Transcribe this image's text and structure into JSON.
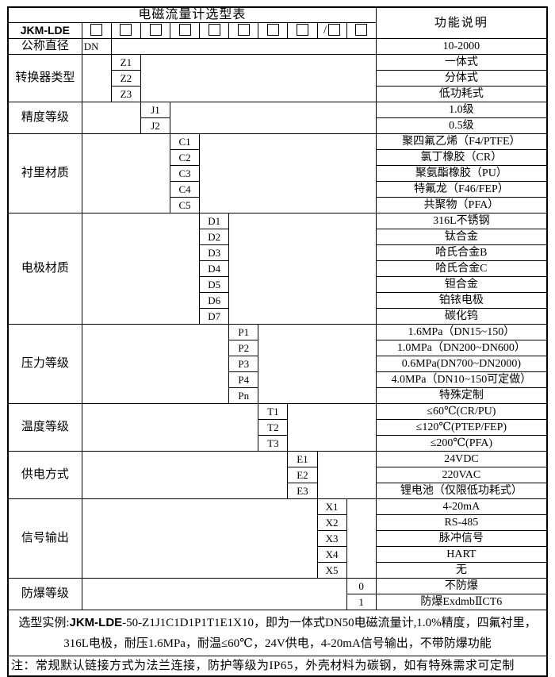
{
  "colors": {
    "border": "#000000",
    "background": "#ffffff",
    "text": "#000000"
  },
  "header": {
    "title": "电磁流量计选型表",
    "function_column": "功能说明",
    "model_prefix": "JKM-LDE",
    "slot_slash": "/"
  },
  "groups": [
    {
      "label": "公称直径",
      "codes": [
        {
          "code": "DN",
          "desc": "10-2000"
        }
      ]
    },
    {
      "label": "转换器类型",
      "codes": [
        {
          "code": "Z1",
          "desc": "一体式"
        },
        {
          "code": "Z2",
          "desc": "分体式"
        },
        {
          "code": "Z3",
          "desc": "低功耗式"
        }
      ]
    },
    {
      "label": "精度等级",
      "codes": [
        {
          "code": "J1",
          "desc": "1.0级"
        },
        {
          "code": "J2",
          "desc": "0.5级"
        }
      ]
    },
    {
      "label": "衬里材质",
      "codes": [
        {
          "code": "C1",
          "desc": "聚四氟乙烯（F4/PTFE）"
        },
        {
          "code": "C2",
          "desc": "氯丁橡胶（CR）"
        },
        {
          "code": "C3",
          "desc": "聚氨酯橡胶（PU）"
        },
        {
          "code": "C4",
          "desc": "特氟龙（F46/FEP）"
        },
        {
          "code": "C5",
          "desc": "共聚物（PFA）"
        }
      ]
    },
    {
      "label": "电极材质",
      "codes": [
        {
          "code": "D1",
          "desc": "316L不锈钢"
        },
        {
          "code": "D2",
          "desc": "钛合金"
        },
        {
          "code": "D3",
          "desc": "哈氏合金B"
        },
        {
          "code": "D4",
          "desc": "哈氏合金C"
        },
        {
          "code": "D5",
          "desc": "钽合金"
        },
        {
          "code": "D6",
          "desc": "铂铱电极"
        },
        {
          "code": "D7",
          "desc": "碳化钨"
        }
      ]
    },
    {
      "label": "压力等级",
      "codes": [
        {
          "code": "P1",
          "desc": "1.6MPa（DN15~150）"
        },
        {
          "code": "P2",
          "desc": "1.0MPa（DN200~DN600）"
        },
        {
          "code": "P3",
          "desc": "0.6MPa(DN700~DN2000)"
        },
        {
          "code": "P4",
          "desc": "4.0MPa（DN10~150可定做）"
        },
        {
          "code": "Pn",
          "desc": "特殊定制"
        }
      ]
    },
    {
      "label": "温度等级",
      "codes": [
        {
          "code": "T1",
          "desc": "≤60℃(CR/PU)"
        },
        {
          "code": "T2",
          "desc": "≤120℃(PTEP/FEP)"
        },
        {
          "code": "T3",
          "desc": "≤200℃(PFA)"
        }
      ]
    },
    {
      "label": "供电方式",
      "codes": [
        {
          "code": "E1",
          "desc": "24VDC"
        },
        {
          "code": "E2",
          "desc": "220VAC"
        },
        {
          "code": "E3",
          "desc": "锂电池（仅限低功耗式）"
        }
      ]
    },
    {
      "label": "信号输出",
      "codes": [
        {
          "code": "X1",
          "desc": "4-20mA"
        },
        {
          "code": "X2",
          "desc": "RS-485"
        },
        {
          "code": "X3",
          "desc": "脉冲信号"
        },
        {
          "code": "X4",
          "desc": "HART"
        },
        {
          "code": "X5",
          "desc": "无"
        }
      ]
    },
    {
      "label": "防爆等级",
      "codes": [
        {
          "code": "0",
          "desc": "不防爆"
        },
        {
          "code": "1",
          "desc": "防爆ExdmbⅡCT6"
        }
      ]
    }
  ],
  "example": {
    "label": "选型实例:",
    "model_bold": "JKM-LDE",
    "line1_rest": "-50-Z1J1C1D1P1T1E1X10，即为一体式DN50电磁流量计,1.0%精度，四氟衬里，",
    "line2": "316L电极，耐压1.6MPa，耐温≤60℃，24V供电，4-20mA信号输出，不带防爆功能"
  },
  "note": "注：常规默认链接方式为法兰连接，防护等级为IP65，外壳材料为碳钢，如有特殊需求可定制"
}
